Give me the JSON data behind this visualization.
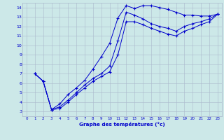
{
  "title": "Graphe des températures (°c)",
  "background_color": "#cce8e8",
  "grid_color": "#aab8cc",
  "line_color": "#0000cc",
  "xlim": [
    -0.5,
    23.5
  ],
  "ylim": [
    2.5,
    14.5
  ],
  "xticks": [
    0,
    1,
    2,
    3,
    4,
    5,
    6,
    7,
    8,
    9,
    10,
    11,
    12,
    13,
    14,
    15,
    16,
    17,
    18,
    19,
    20,
    21,
    22,
    23
  ],
  "yticks": [
    3,
    4,
    5,
    6,
    7,
    8,
    9,
    10,
    11,
    12,
    13,
    14
  ],
  "series": [
    {
      "x": [
        1,
        2,
        3,
        4,
        5,
        6,
        7,
        8,
        9,
        10,
        11,
        12,
        13,
        14,
        15,
        16,
        17,
        18,
        19,
        20,
        21,
        22,
        23
      ],
      "y": [
        7.0,
        6.2,
        3.2,
        3.8,
        4.8,
        5.5,
        6.3,
        7.5,
        8.8,
        10.2,
        12.9,
        14.2,
        13.9,
        14.2,
        14.2,
        14.0,
        13.8,
        13.5,
        13.2,
        13.2,
        13.1,
        13.1,
        13.3
      ]
    },
    {
      "x": [
        1,
        2,
        3,
        4,
        5,
        6,
        7,
        8,
        9,
        10,
        11,
        12,
        13,
        14,
        15,
        16,
        17,
        18,
        19,
        20,
        21,
        22,
        23
      ],
      "y": [
        7.0,
        6.2,
        3.2,
        3.5,
        4.2,
        5.0,
        5.8,
        6.5,
        7.0,
        7.8,
        10.5,
        13.5,
        13.2,
        12.8,
        12.3,
        12.0,
        11.8,
        11.5,
        12.0,
        12.3,
        12.5,
        12.8,
        13.3
      ]
    },
    {
      "x": [
        1,
        2,
        3,
        4,
        5,
        6,
        7,
        8,
        9,
        10,
        11,
        12,
        13,
        14,
        15,
        16,
        17,
        18,
        19,
        20,
        21,
        22,
        23
      ],
      "y": [
        7.0,
        6.2,
        3.2,
        3.3,
        4.0,
        4.8,
        5.5,
        6.2,
        6.7,
        7.2,
        9.0,
        12.5,
        12.5,
        12.2,
        11.8,
        11.5,
        11.2,
        11.0,
        11.5,
        11.8,
        12.2,
        12.5,
        13.3
      ]
    }
  ]
}
